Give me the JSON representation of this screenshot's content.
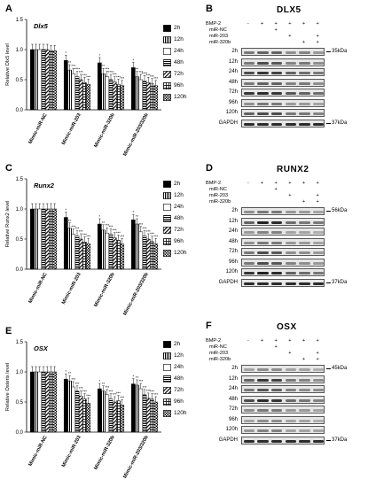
{
  "colors": {
    "ink": "#000000",
    "membrane": "#e6e6e6",
    "band": "#1a1a1a"
  },
  "legend_entries": [
    "2h",
    "12h",
    "24h",
    "48h",
    "72h",
    "96h",
    "120h"
  ],
  "legend_patterns": [
    "solid",
    "vlines",
    "open",
    "hlines",
    "diag",
    "grid",
    "checker"
  ],
  "chart_data": [
    {
      "panel": "A",
      "type": "bar",
      "title": "Dlx5",
      "ylabel": "Relative Dlx5 level",
      "ylim": [
        0,
        1.5
      ],
      "yticks": [
        0.0,
        0.5,
        1.0,
        1.5
      ],
      "categories": [
        "Mimic-miR-NC",
        "Mimic-miR-203",
        "Mimic-miR-320b",
        "Mimic-miR-203/320b"
      ],
      "series": [
        {
          "name": "2h",
          "values": [
            1.0,
            0.82,
            0.78,
            0.7
          ]
        },
        {
          "name": "12h",
          "values": [
            1.0,
            0.66,
            0.6,
            0.55
          ]
        },
        {
          "name": "24h",
          "values": [
            1.0,
            0.6,
            0.55,
            0.5
          ]
        },
        {
          "name": "48h",
          "values": [
            1.0,
            0.55,
            0.5,
            0.48
          ]
        },
        {
          "name": "72h",
          "values": [
            1.0,
            0.5,
            0.46,
            0.45
          ]
        },
        {
          "name": "96h",
          "values": [
            0.98,
            0.45,
            0.42,
            0.43
          ]
        },
        {
          "name": "120h",
          "values": [
            0.98,
            0.42,
            0.4,
            0.4
          ]
        }
      ],
      "star_labels": [
        "*",
        "**",
        "***",
        "****",
        "***",
        "***",
        "***"
      ]
    },
    {
      "panel": "C",
      "type": "bar",
      "title": "Runx2",
      "ylabel": "Relative Runx2 level",
      "ylim": [
        0,
        1.5
      ],
      "yticks": [
        0.0,
        0.5,
        1.0,
        1.5
      ],
      "categories": [
        "Mimic-miR-NC",
        "Mimic-miR-203",
        "Mimic-miR-320b",
        "Mimic-miR-203/320b"
      ],
      "series": [
        {
          "name": "2h",
          "values": [
            1.0,
            0.86,
            0.75,
            0.82
          ]
        },
        {
          "name": "12h",
          "values": [
            1.0,
            0.68,
            0.65,
            0.75
          ]
        },
        {
          "name": "24h",
          "values": [
            1.0,
            0.58,
            0.6,
            0.62
          ]
        },
        {
          "name": "48h",
          "values": [
            1.0,
            0.55,
            0.58,
            0.55
          ]
        },
        {
          "name": "72h",
          "values": [
            1.0,
            0.5,
            0.52,
            0.5
          ]
        },
        {
          "name": "96h",
          "values": [
            1.0,
            0.45,
            0.48,
            0.46
          ]
        },
        {
          "name": "120h",
          "values": [
            1.0,
            0.42,
            0.42,
            0.42
          ]
        }
      ],
      "star_labels": [
        "*",
        "**",
        "***",
        "***",
        "***",
        "***",
        "***"
      ]
    },
    {
      "panel": "E",
      "type": "bar",
      "title": "OSX",
      "ylabel": "Relative Osterix level",
      "ylim": [
        0,
        1.5
      ],
      "yticks": [
        0.0,
        0.5,
        1.0,
        1.5
      ],
      "categories": [
        "Mimic-miR-NC",
        "Mimic-miR-203",
        "Mimic-miR-320b",
        "Mimic-miR-203/320b"
      ],
      "series": [
        {
          "name": "2h",
          "values": [
            1.0,
            0.88,
            0.72,
            0.8
          ]
        },
        {
          "name": "12h",
          "values": [
            1.0,
            0.85,
            0.68,
            0.78
          ]
        },
        {
          "name": "24h",
          "values": [
            1.0,
            0.75,
            0.62,
            0.72
          ]
        },
        {
          "name": "48h",
          "values": [
            1.0,
            0.68,
            0.55,
            0.62
          ]
        },
        {
          "name": "72h",
          "values": [
            1.0,
            0.6,
            0.5,
            0.56
          ]
        },
        {
          "name": "96h",
          "values": [
            1.0,
            0.55,
            0.52,
            0.55
          ]
        },
        {
          "name": "120h",
          "values": [
            1.0,
            0.48,
            0.45,
            0.5
          ]
        }
      ],
      "star_labels": [
        "*",
        "**",
        "***",
        "***",
        "***",
        "***",
        "***"
      ]
    }
  ],
  "blots": [
    {
      "letter": "B",
      "title": "DLX5",
      "treatments": [
        {
          "label": "BMP-2",
          "signs": [
            "-",
            "+",
            "+",
            "+",
            "+",
            "+"
          ]
        },
        {
          "label": "miR-NC",
          "signs": [
            "",
            "",
            "+",
            "",
            "",
            ""
          ]
        },
        {
          "label": "miR-203",
          "signs": [
            "",
            "",
            "",
            "+",
            "",
            "+"
          ]
        },
        {
          "label": "miR-320b",
          "signs": [
            "",
            "",
            "",
            "",
            "+",
            "+"
          ]
        }
      ],
      "lanes": [
        "2h",
        "12h",
        "24h",
        "48h",
        "72h",
        "96h",
        "120h",
        "GAPDH"
      ],
      "band_levels": [
        [
          0.5,
          0.6,
          0.6,
          0.4,
          0.45,
          0.35
        ],
        [
          0.5,
          0.7,
          0.65,
          0.45,
          0.5,
          0.4
        ],
        [
          0.7,
          0.8,
          0.75,
          0.6,
          0.55,
          0.5
        ],
        [
          0.5,
          0.6,
          0.6,
          0.45,
          0.5,
          0.4
        ],
        [
          0.8,
          0.85,
          0.8,
          0.65,
          0.6,
          0.55
        ],
        [
          0.4,
          0.5,
          0.5,
          0.35,
          0.35,
          0.3
        ],
        [
          0.6,
          0.7,
          0.7,
          0.5,
          0.5,
          0.45
        ],
        [
          0.85,
          0.85,
          0.85,
          0.85,
          0.85,
          0.85
        ]
      ],
      "markers": [
        {
          "lane": "2h",
          "text": "35kDa"
        },
        {
          "lane": "GAPDH",
          "text": "37kDa"
        }
      ]
    },
    {
      "letter": "D",
      "title": "RUNX2",
      "treatments": [
        {
          "label": "BMP-2",
          "signs": [
            "-",
            "+",
            "+",
            "+",
            "+",
            "+"
          ]
        },
        {
          "label": "miR-NC",
          "signs": [
            "",
            "",
            "+",
            "",
            "",
            ""
          ]
        },
        {
          "label": "miR-203",
          "signs": [
            "",
            "",
            "",
            "+",
            "",
            "+"
          ]
        },
        {
          "label": "miR-320b",
          "signs": [
            "",
            "",
            "",
            "",
            "+",
            "+"
          ]
        }
      ],
      "lanes": [
        "2h",
        "12h",
        "24h",
        "48h",
        "72h",
        "96h",
        "120h",
        "GAPDH"
      ],
      "band_levels": [
        [
          0.4,
          0.5,
          0.5,
          0.35,
          0.35,
          0.3
        ],
        [
          0.6,
          0.9,
          0.85,
          0.55,
          0.5,
          0.5
        ],
        [
          0.35,
          0.45,
          0.45,
          0.3,
          0.3,
          0.25
        ],
        [
          0.4,
          0.5,
          0.5,
          0.35,
          0.35,
          0.3
        ],
        [
          0.5,
          0.7,
          0.65,
          0.4,
          0.4,
          0.35
        ],
        [
          0.5,
          0.7,
          0.65,
          0.45,
          0.4,
          0.35
        ],
        [
          0.8,
          0.9,
          0.85,
          0.6,
          0.55,
          0.5
        ],
        [
          0.85,
          0.85,
          0.85,
          0.85,
          0.85,
          0.85
        ]
      ],
      "markers": [
        {
          "lane": "2h",
          "text": "56kDa"
        },
        {
          "lane": "GAPDH",
          "text": "37kDa"
        }
      ]
    },
    {
      "letter": "F",
      "title": "OSX",
      "treatments": [
        {
          "label": "BMP-2",
          "signs": [
            "-",
            "+",
            "+",
            "+",
            "+",
            "+"
          ]
        },
        {
          "label": "miR-NC",
          "signs": [
            "",
            "",
            "+",
            "",
            "",
            ""
          ]
        },
        {
          "label": "miR-203",
          "signs": [
            "",
            "",
            "",
            "+",
            "",
            "+"
          ]
        },
        {
          "label": "miR-320b",
          "signs": [
            "",
            "",
            "",
            "",
            "+",
            "+"
          ]
        }
      ],
      "lanes": [
        "2h",
        "12h",
        "24h",
        "48h",
        "72h",
        "96h",
        "120h",
        "GAPDH"
      ],
      "band_levels": [
        [
          0.3,
          0.4,
          0.4,
          0.3,
          0.3,
          0.25
        ],
        [
          0.6,
          0.8,
          0.75,
          0.5,
          0.45,
          0.4
        ],
        [
          0.5,
          0.65,
          0.6,
          0.45,
          0.4,
          0.4
        ],
        [
          0.7,
          0.85,
          0.8,
          0.55,
          0.5,
          0.45
        ],
        [
          0.4,
          0.5,
          0.5,
          0.35,
          0.35,
          0.3
        ],
        [
          0.3,
          0.4,
          0.4,
          0.3,
          0.3,
          0.25
        ],
        [
          0.35,
          0.45,
          0.45,
          0.3,
          0.3,
          0.3
        ],
        [
          0.85,
          0.85,
          0.85,
          0.85,
          0.85,
          0.85
        ]
      ],
      "markers": [
        {
          "lane": "2h",
          "text": "45kDa"
        },
        {
          "lane": "GAPDH",
          "text": "37kDa"
        }
      ]
    }
  ]
}
